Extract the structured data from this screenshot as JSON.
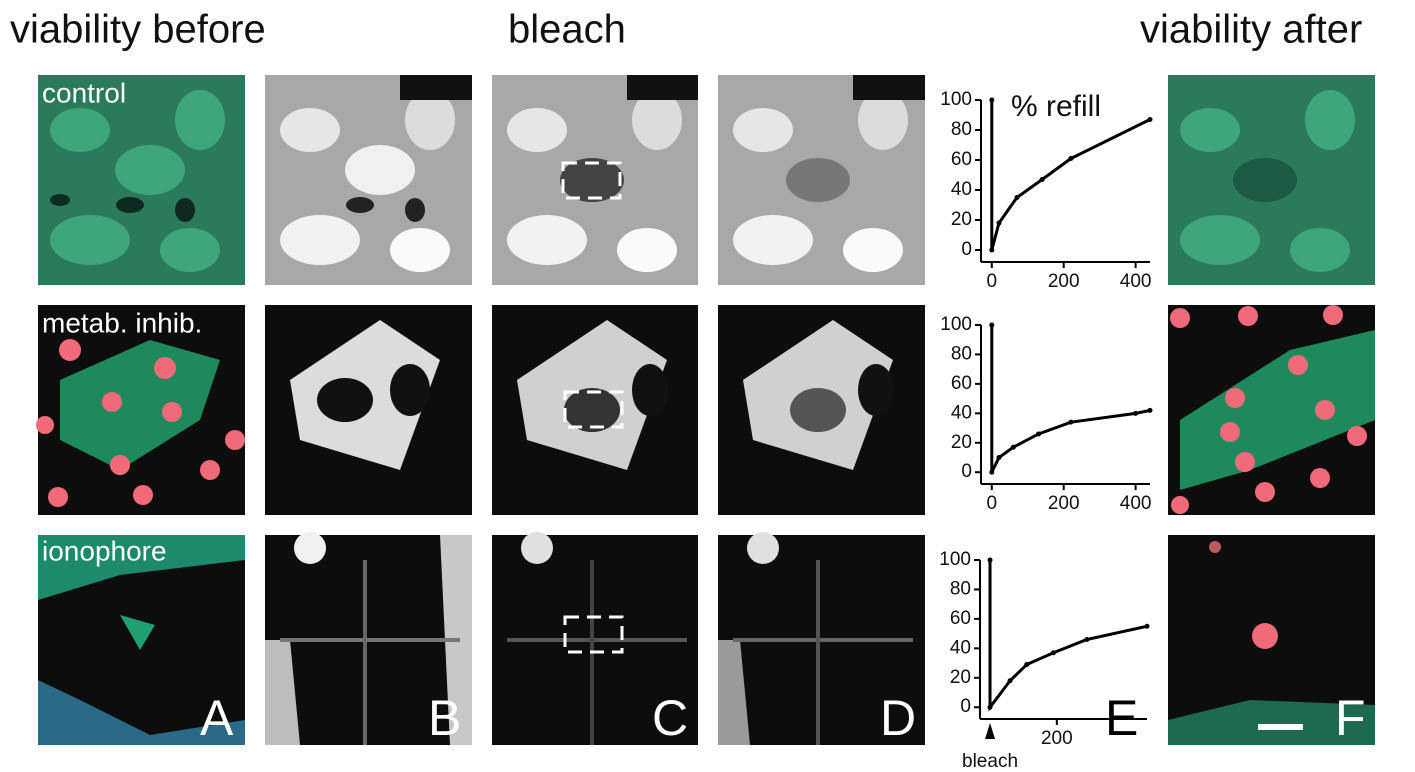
{
  "headers": [
    "viability before",
    "bleach",
    "viability after"
  ],
  "row_labels": [
    "control",
    "metab. inhib.",
    "ionophore"
  ],
  "panel_letters": [
    "A",
    "B",
    "C",
    "D",
    "E",
    "F"
  ],
  "chart_data": [
    {
      "type": "line",
      "annotation": "% refill",
      "color": "#000000",
      "x": [
        0,
        0,
        20,
        70,
        140,
        220,
        440
      ],
      "values": [
        100,
        0,
        18,
        35,
        47,
        61,
        87
      ],
      "xlim": [
        -30,
        440
      ],
      "ylim": [
        -8,
        100
      ],
      "xticks": [
        0,
        200,
        400
      ],
      "yticks": [
        0,
        20,
        40,
        60,
        80,
        100
      ]
    },
    {
      "type": "line",
      "color": "#000000",
      "x": [
        0,
        0,
        20,
        60,
        130,
        220,
        400,
        440
      ],
      "values": [
        100,
        0,
        10,
        17,
        26,
        34,
        40,
        42
      ],
      "xlim": [
        -30,
        440
      ],
      "ylim": [
        -8,
        100
      ],
      "xticks": [
        0,
        200,
        400
      ],
      "yticks": [
        0,
        20,
        40,
        60,
        80,
        100
      ]
    },
    {
      "type": "line",
      "marker_label": "bleach",
      "color": "#000000",
      "x": [
        0,
        0,
        60,
        110,
        190,
        290,
        470
      ],
      "values": [
        100,
        0,
        18,
        29,
        37,
        46,
        55
      ],
      "xlim": [
        -30,
        470
      ],
      "ylim": [
        -8,
        100
      ],
      "xticks": [
        200
      ],
      "yticks": [
        0,
        20,
        40,
        60,
        80,
        100
      ]
    }
  ]
}
